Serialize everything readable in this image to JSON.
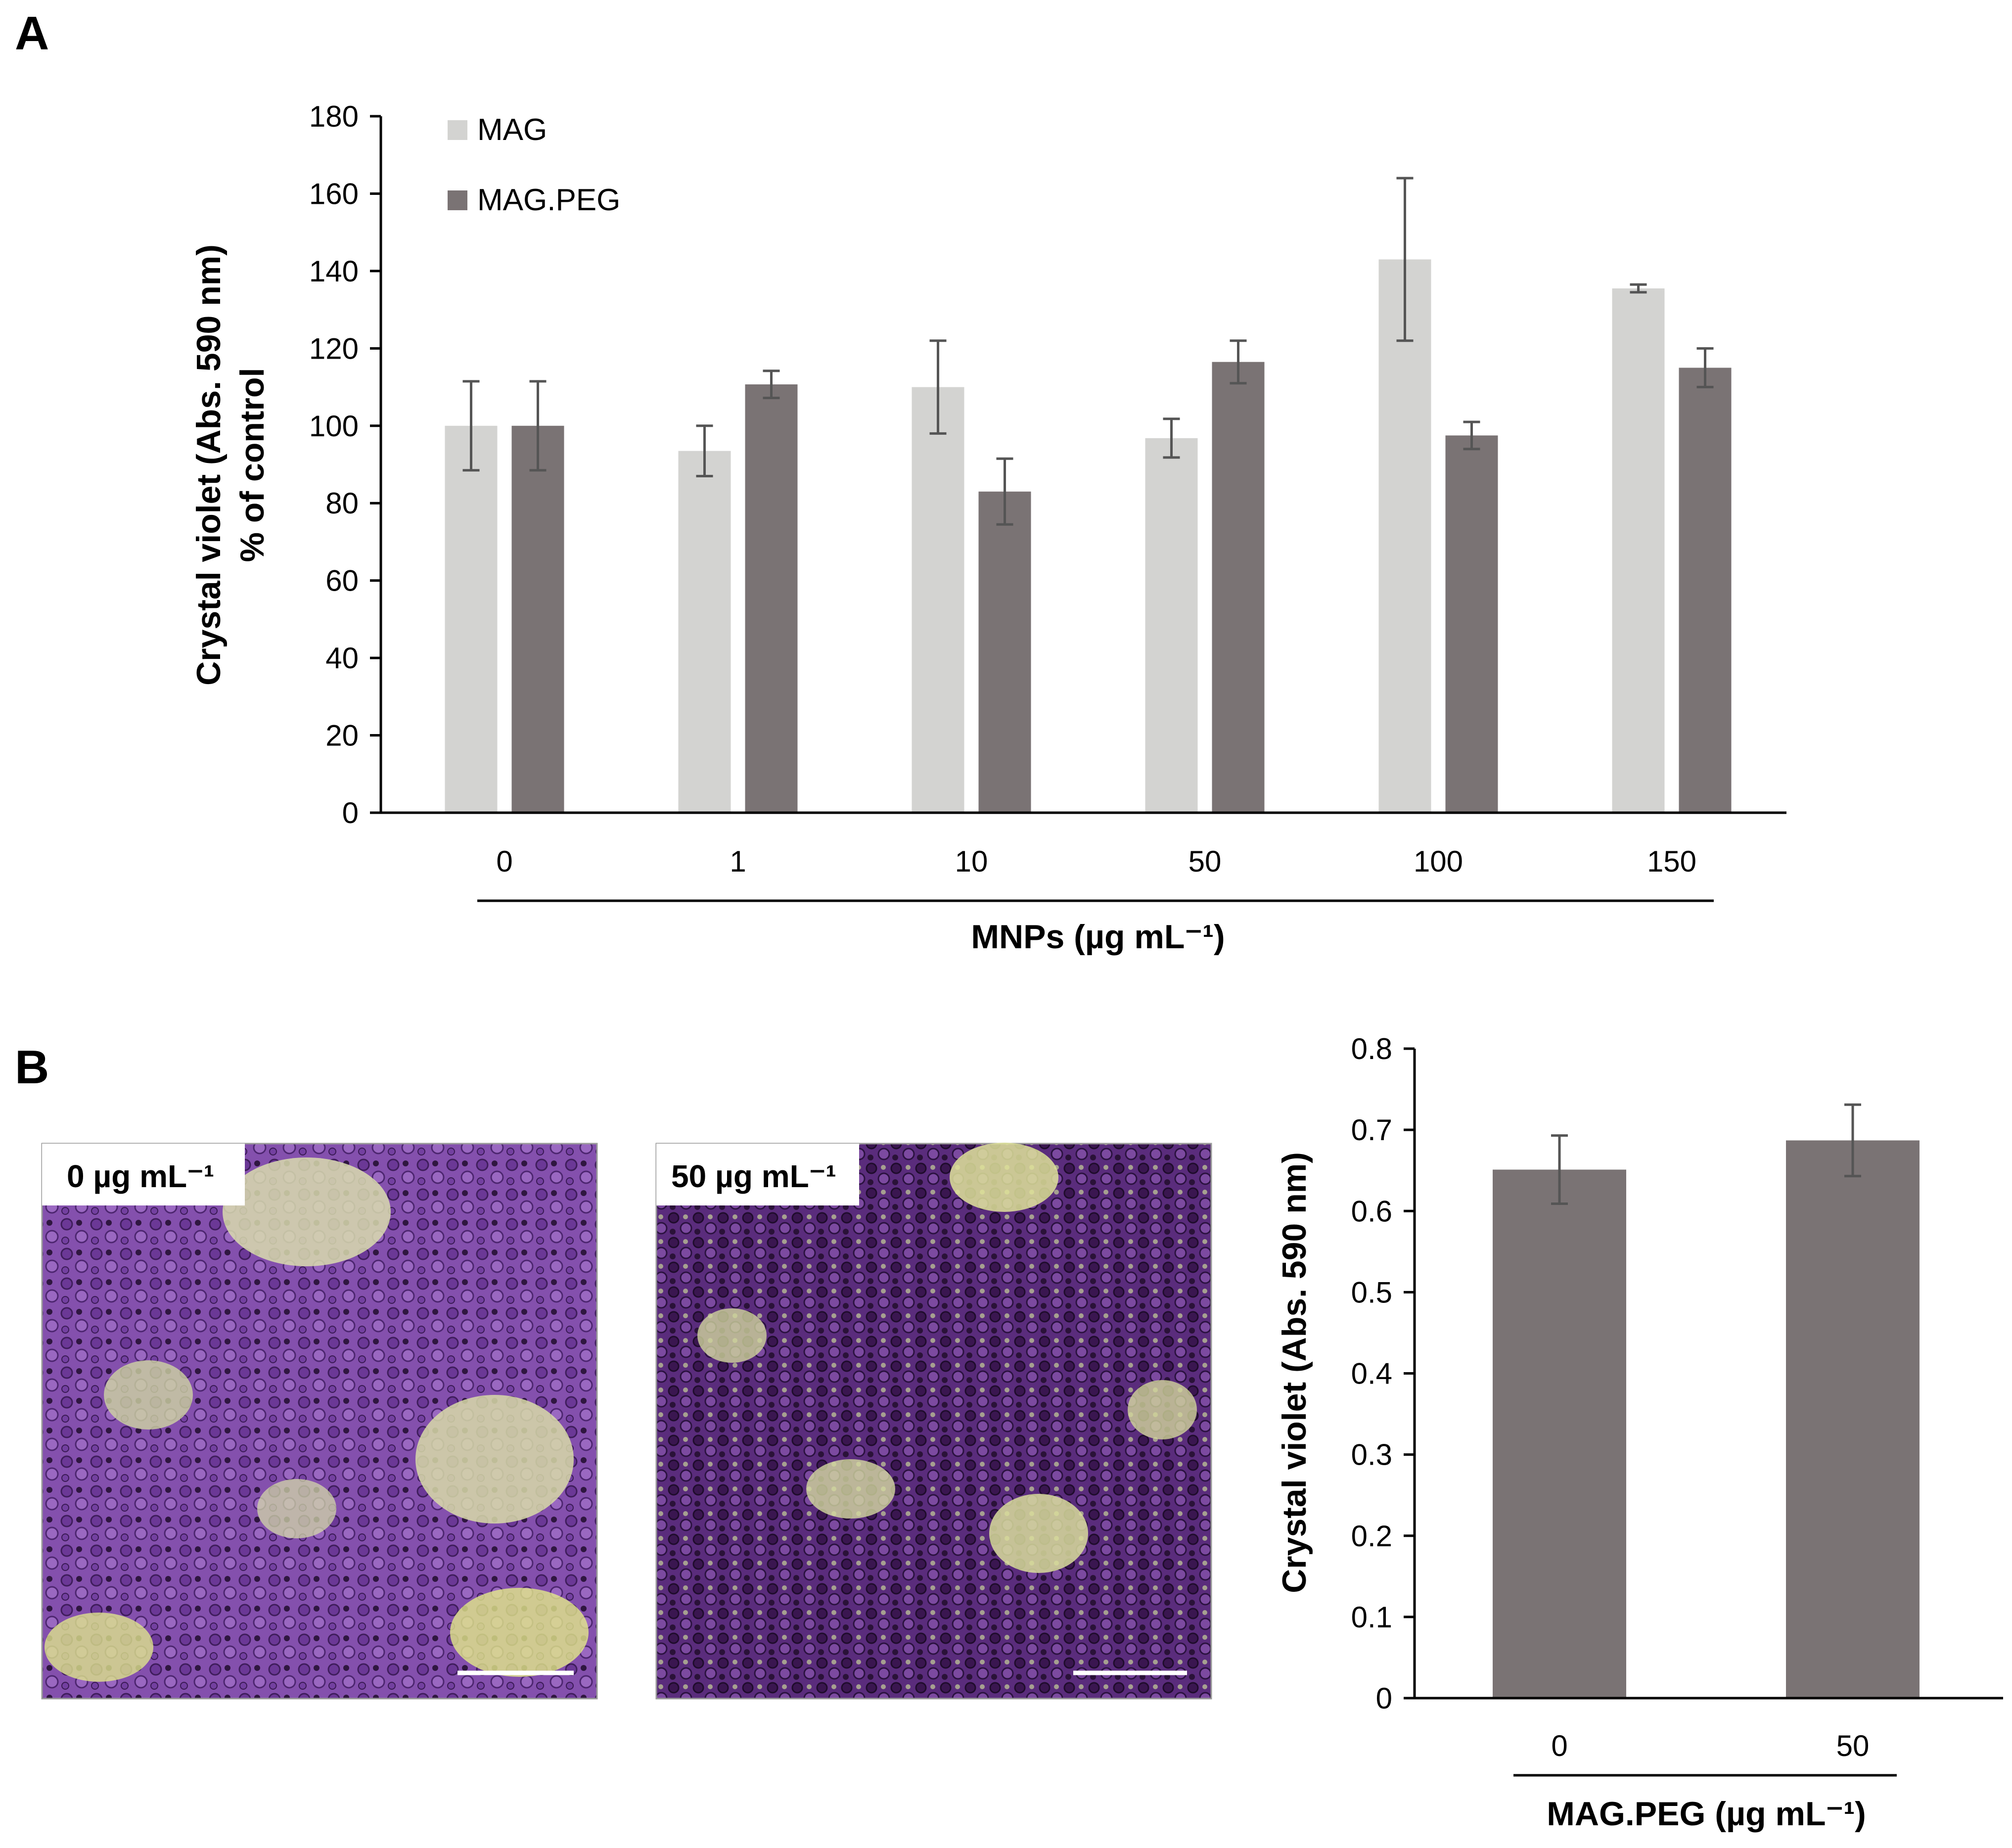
{
  "panels": {
    "a_label": "A",
    "b_label": "B"
  },
  "chart_data": [
    {
      "type": "bar",
      "panel": "A",
      "categories": [
        "0",
        "1",
        "10",
        "50",
        "100",
        "150"
      ],
      "series": [
        {
          "name": "MAG",
          "color": "#d3d3d1",
          "values": [
            100,
            93.5,
            110,
            96.8,
            143,
            135.5
          ],
          "errors": [
            11.5,
            6.5,
            12,
            5,
            21,
            1
          ]
        },
        {
          "name": "MAG.PEG",
          "color": "#7a7374",
          "values": [
            100,
            110.7,
            83,
            116.5,
            97.5,
            115
          ],
          "errors": [
            11.5,
            3.5,
            8.5,
            5.5,
            3.5,
            5
          ]
        }
      ],
      "ylabel_line1": "Crystal violet (Abs. 590 nm)",
      "ylabel_line2": "% of control",
      "xlabel": "MNPs (µg mL⁻¹)",
      "ylim": [
        0,
        180
      ],
      "yticks": [
        "0",
        "20",
        "40",
        "60",
        "80",
        "100",
        "120",
        "140",
        "160",
        "180"
      ],
      "legend": "top-left"
    },
    {
      "type": "bar",
      "panel": "B",
      "categories": [
        "0",
        "50"
      ],
      "series": [
        {
          "name": "MAG.PEG",
          "color": "#7a7374",
          "values": [
            0.651,
            0.687
          ],
          "errors": [
            0.042,
            0.044
          ]
        }
      ],
      "ylabel": "Crystal violet (Abs. 590 nm)",
      "xlabel": "MAG.PEG (µg mL⁻¹)",
      "ylim": [
        0,
        0.8
      ],
      "yticks": [
        "0",
        "0.1",
        "0.2",
        "0.3",
        "0.4",
        "0.5",
        "0.6",
        "0.7",
        "0.8"
      ]
    }
  ],
  "micrographs": [
    {
      "label": "0 µg mL⁻¹",
      "stain": "crystal-violet-micrograph"
    },
    {
      "label": "50 µg mL⁻¹",
      "stain": "crystal-violet-micrograph"
    }
  ]
}
